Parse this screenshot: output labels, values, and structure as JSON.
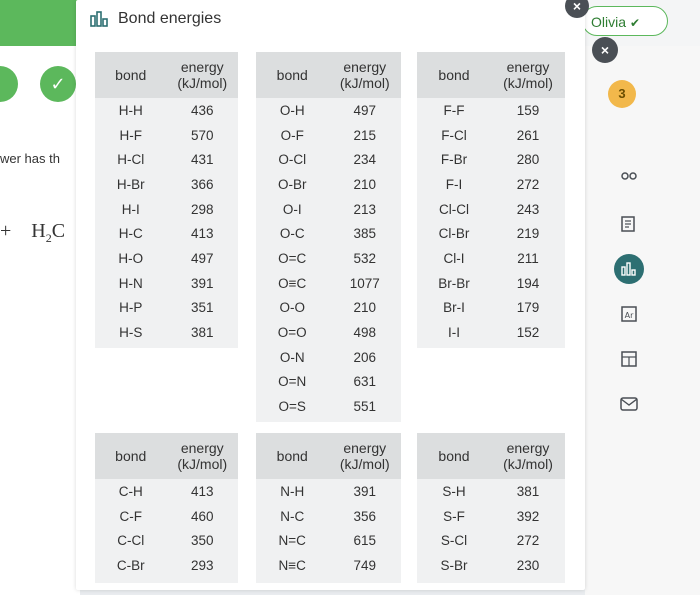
{
  "dialog": {
    "title": "Bond energies"
  },
  "background": {
    "partial_text": "wer has th",
    "formula_main": "H",
    "formula_sub": "2",
    "formula_tail": "C",
    "plus": "+",
    "badge": "3",
    "user_menu": "Olivia"
  },
  "tables": [
    {
      "headers": {
        "bond": "bond",
        "energy": "energy (kJ/mol)"
      },
      "rows": [
        [
          "H-H",
          "436"
        ],
        [
          "H-F",
          "570"
        ],
        [
          "H-Cl",
          "431"
        ],
        [
          "H-Br",
          "366"
        ],
        [
          "H-I",
          "298"
        ],
        [
          "H-C",
          "413"
        ],
        [
          "H-O",
          "497"
        ],
        [
          "H-N",
          "391"
        ],
        [
          "H-P",
          "351"
        ],
        [
          "H-S",
          "381"
        ]
      ]
    },
    {
      "headers": {
        "bond": "bond",
        "energy": "energy (kJ/mol)"
      },
      "rows": [
        [
          "O-H",
          "497"
        ],
        [
          "O-F",
          "215"
        ],
        [
          "O-Cl",
          "234"
        ],
        [
          "O-Br",
          "210"
        ],
        [
          "O-I",
          "213"
        ],
        [
          "O-C",
          "385"
        ],
        [
          "O=C",
          "532"
        ],
        [
          "O≡C",
          "1077"
        ],
        [
          "O-O",
          "210"
        ],
        [
          "O=O",
          "498"
        ],
        [
          "O-N",
          "206"
        ],
        [
          "O=N",
          "631"
        ],
        [
          "O=S",
          "551"
        ]
      ]
    },
    {
      "headers": {
        "bond": "bond",
        "energy": "energy (kJ/mol)"
      },
      "rows": [
        [
          "F-F",
          "159"
        ],
        [
          "F-Cl",
          "261"
        ],
        [
          "F-Br",
          "280"
        ],
        [
          "F-I",
          "272"
        ],
        [
          "Cl-Cl",
          "243"
        ],
        [
          "Cl-Br",
          "219"
        ],
        [
          "Cl-I",
          "211"
        ],
        [
          "Br-Br",
          "194"
        ],
        [
          "Br-I",
          "179"
        ],
        [
          "I-I",
          "152"
        ]
      ]
    },
    {
      "headers": {
        "bond": "bond",
        "energy": "energy (kJ/mol)"
      },
      "rows": [
        [
          "C-H",
          "413"
        ],
        [
          "C-F",
          "460"
        ],
        [
          "C-Cl",
          "350"
        ],
        [
          "C-Br",
          "293"
        ]
      ]
    },
    {
      "headers": {
        "bond": "bond",
        "energy": "energy (kJ/mol)"
      },
      "rows": [
        [
          "N-H",
          "391"
        ],
        [
          "N-C",
          "356"
        ],
        [
          "N=C",
          "615"
        ],
        [
          "N≡C",
          "749"
        ]
      ]
    },
    {
      "headers": {
        "bond": "bond",
        "energy": "energy (kJ/mol)"
      },
      "rows": [
        [
          "S-H",
          "381"
        ],
        [
          "S-F",
          "392"
        ],
        [
          "S-Cl",
          "272"
        ],
        [
          "S-Br",
          "230"
        ]
      ]
    }
  ],
  "toolbar_icons": [
    "periodic-icon",
    "notes-icon",
    "chart-icon",
    "periodic-table-icon",
    "calculator-icon",
    "mail-icon"
  ]
}
